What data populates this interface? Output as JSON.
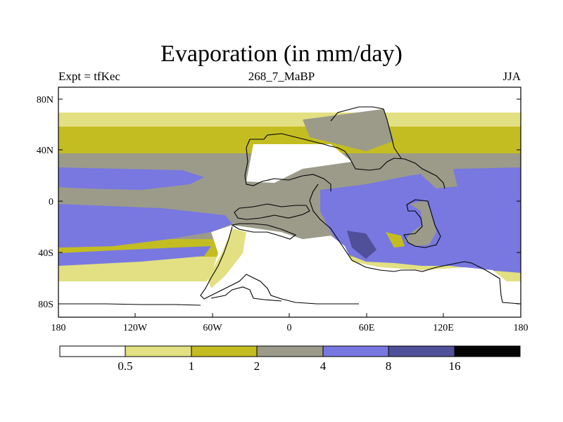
{
  "figure": {
    "title": "Evaporation (in mm/day)",
    "left_label": "Expt = tfKec",
    "center_label": "268_7_MaBP",
    "right_label": "JJA"
  },
  "axes": {
    "y_ticks": [
      "80N",
      "40N",
      "0",
      "40S",
      "80S"
    ],
    "x_ticks": [
      "180",
      "120W",
      "60W",
      "0",
      "60E",
      "120E",
      "180"
    ]
  },
  "colorbar": {
    "labels": [
      "0.5",
      "1",
      "2",
      "4",
      "8",
      "16"
    ],
    "colors": [
      "#ffffff",
      "#e2e082",
      "#c3bd22",
      "#9c9b8a",
      "#7878e0",
      "#4f4f9a",
      "#050505"
    ]
  }
}
